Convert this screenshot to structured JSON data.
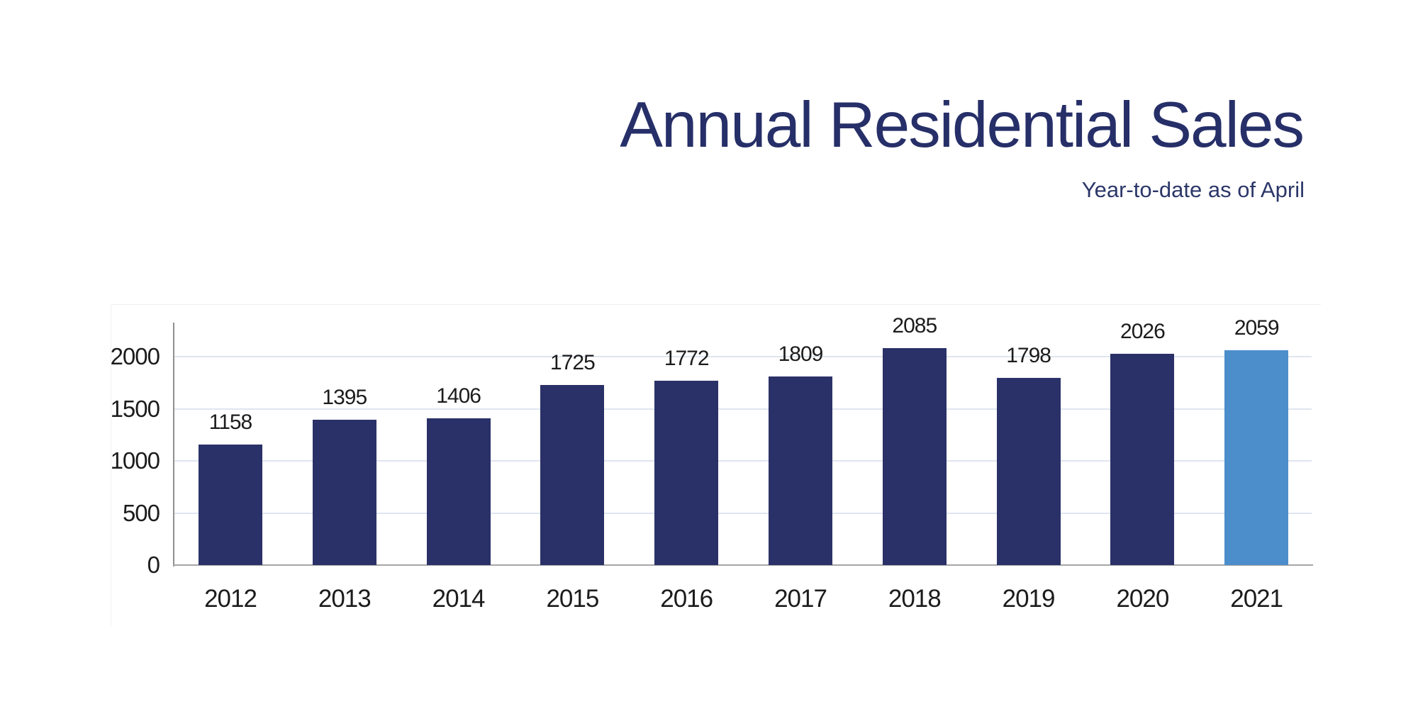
{
  "page": {
    "background": "#ffffff"
  },
  "header": {
    "title": "Annual Residential Sales",
    "subtitle": "Year-to-date as of April",
    "title_color": "#262f68",
    "subtitle_color": "#2c3769"
  },
  "chart_data": {
    "type": "bar",
    "title": "Annual Residential Sales",
    "subtitle": "Year-to-date as of April",
    "categories": [
      "2012",
      "2013",
      "2014",
      "2015",
      "2016",
      "2017",
      "2018",
      "2019",
      "2020",
      "2021"
    ],
    "values": [
      1158,
      1395,
      1406,
      1725,
      1772,
      1809,
      2085,
      1798,
      2026,
      2059
    ],
    "value_labels_shown": true,
    "xlabel": "",
    "ylabel": "",
    "y_axis": {
      "ticks": [
        0,
        500,
        1000,
        1500,
        2000
      ],
      "range": [
        0,
        2350
      ]
    },
    "grid": "horizontal",
    "legend": "none",
    "highlight_category": "2021",
    "colors": {
      "bar": "#2a3168",
      "highlight_bar": "#4b8ecb",
      "gridline": "#dfe5f0",
      "axis_line_vertical": "#8f8f8f",
      "axis_line_horizontal": "#a6a6a6",
      "label_text": "#1c1c1c"
    }
  }
}
